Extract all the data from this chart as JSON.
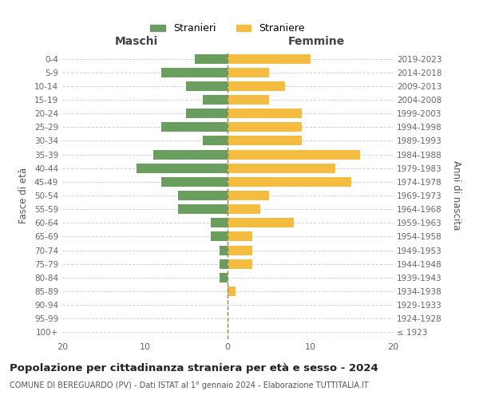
{
  "age_groups": [
    "100+",
    "95-99",
    "90-94",
    "85-89",
    "80-84",
    "75-79",
    "70-74",
    "65-69",
    "60-64",
    "55-59",
    "50-54",
    "45-49",
    "40-44",
    "35-39",
    "30-34",
    "25-29",
    "20-24",
    "15-19",
    "10-14",
    "5-9",
    "0-4"
  ],
  "birth_years": [
    "≤ 1923",
    "1924-1928",
    "1929-1933",
    "1934-1938",
    "1939-1943",
    "1944-1948",
    "1949-1953",
    "1954-1958",
    "1959-1963",
    "1964-1968",
    "1969-1973",
    "1974-1978",
    "1979-1983",
    "1984-1988",
    "1989-1993",
    "1994-1998",
    "1999-2003",
    "2004-2008",
    "2009-2013",
    "2014-2018",
    "2019-2023"
  ],
  "maschi": [
    0,
    0,
    0,
    0,
    1,
    1,
    1,
    2,
    2,
    6,
    6,
    8,
    11,
    9,
    3,
    8,
    5,
    3,
    5,
    8,
    4
  ],
  "femmine": [
    0,
    0,
    0,
    1,
    0,
    3,
    3,
    3,
    8,
    4,
    5,
    15,
    13,
    16,
    9,
    9,
    9,
    5,
    7,
    5,
    10
  ],
  "maschi_color": "#6a9e5e",
  "femmine_color": "#f5bc42",
  "title": "Popolazione per cittadinanza straniera per età e sesso - 2024",
  "subtitle": "COMUNE DI BEREGUARDO (PV) - Dati ISTAT al 1° gennaio 2024 - Elaborazione TUTTITALIA.IT",
  "xlabel_left": "Maschi",
  "xlabel_right": "Femmine",
  "ylabel_left": "Fasce di età",
  "ylabel_right": "Anni di nascita",
  "legend_maschi": "Stranieri",
  "legend_femmine": "Straniere",
  "xlim": 20,
  "background_color": "#ffffff",
  "grid_color": "#d3d3d3"
}
